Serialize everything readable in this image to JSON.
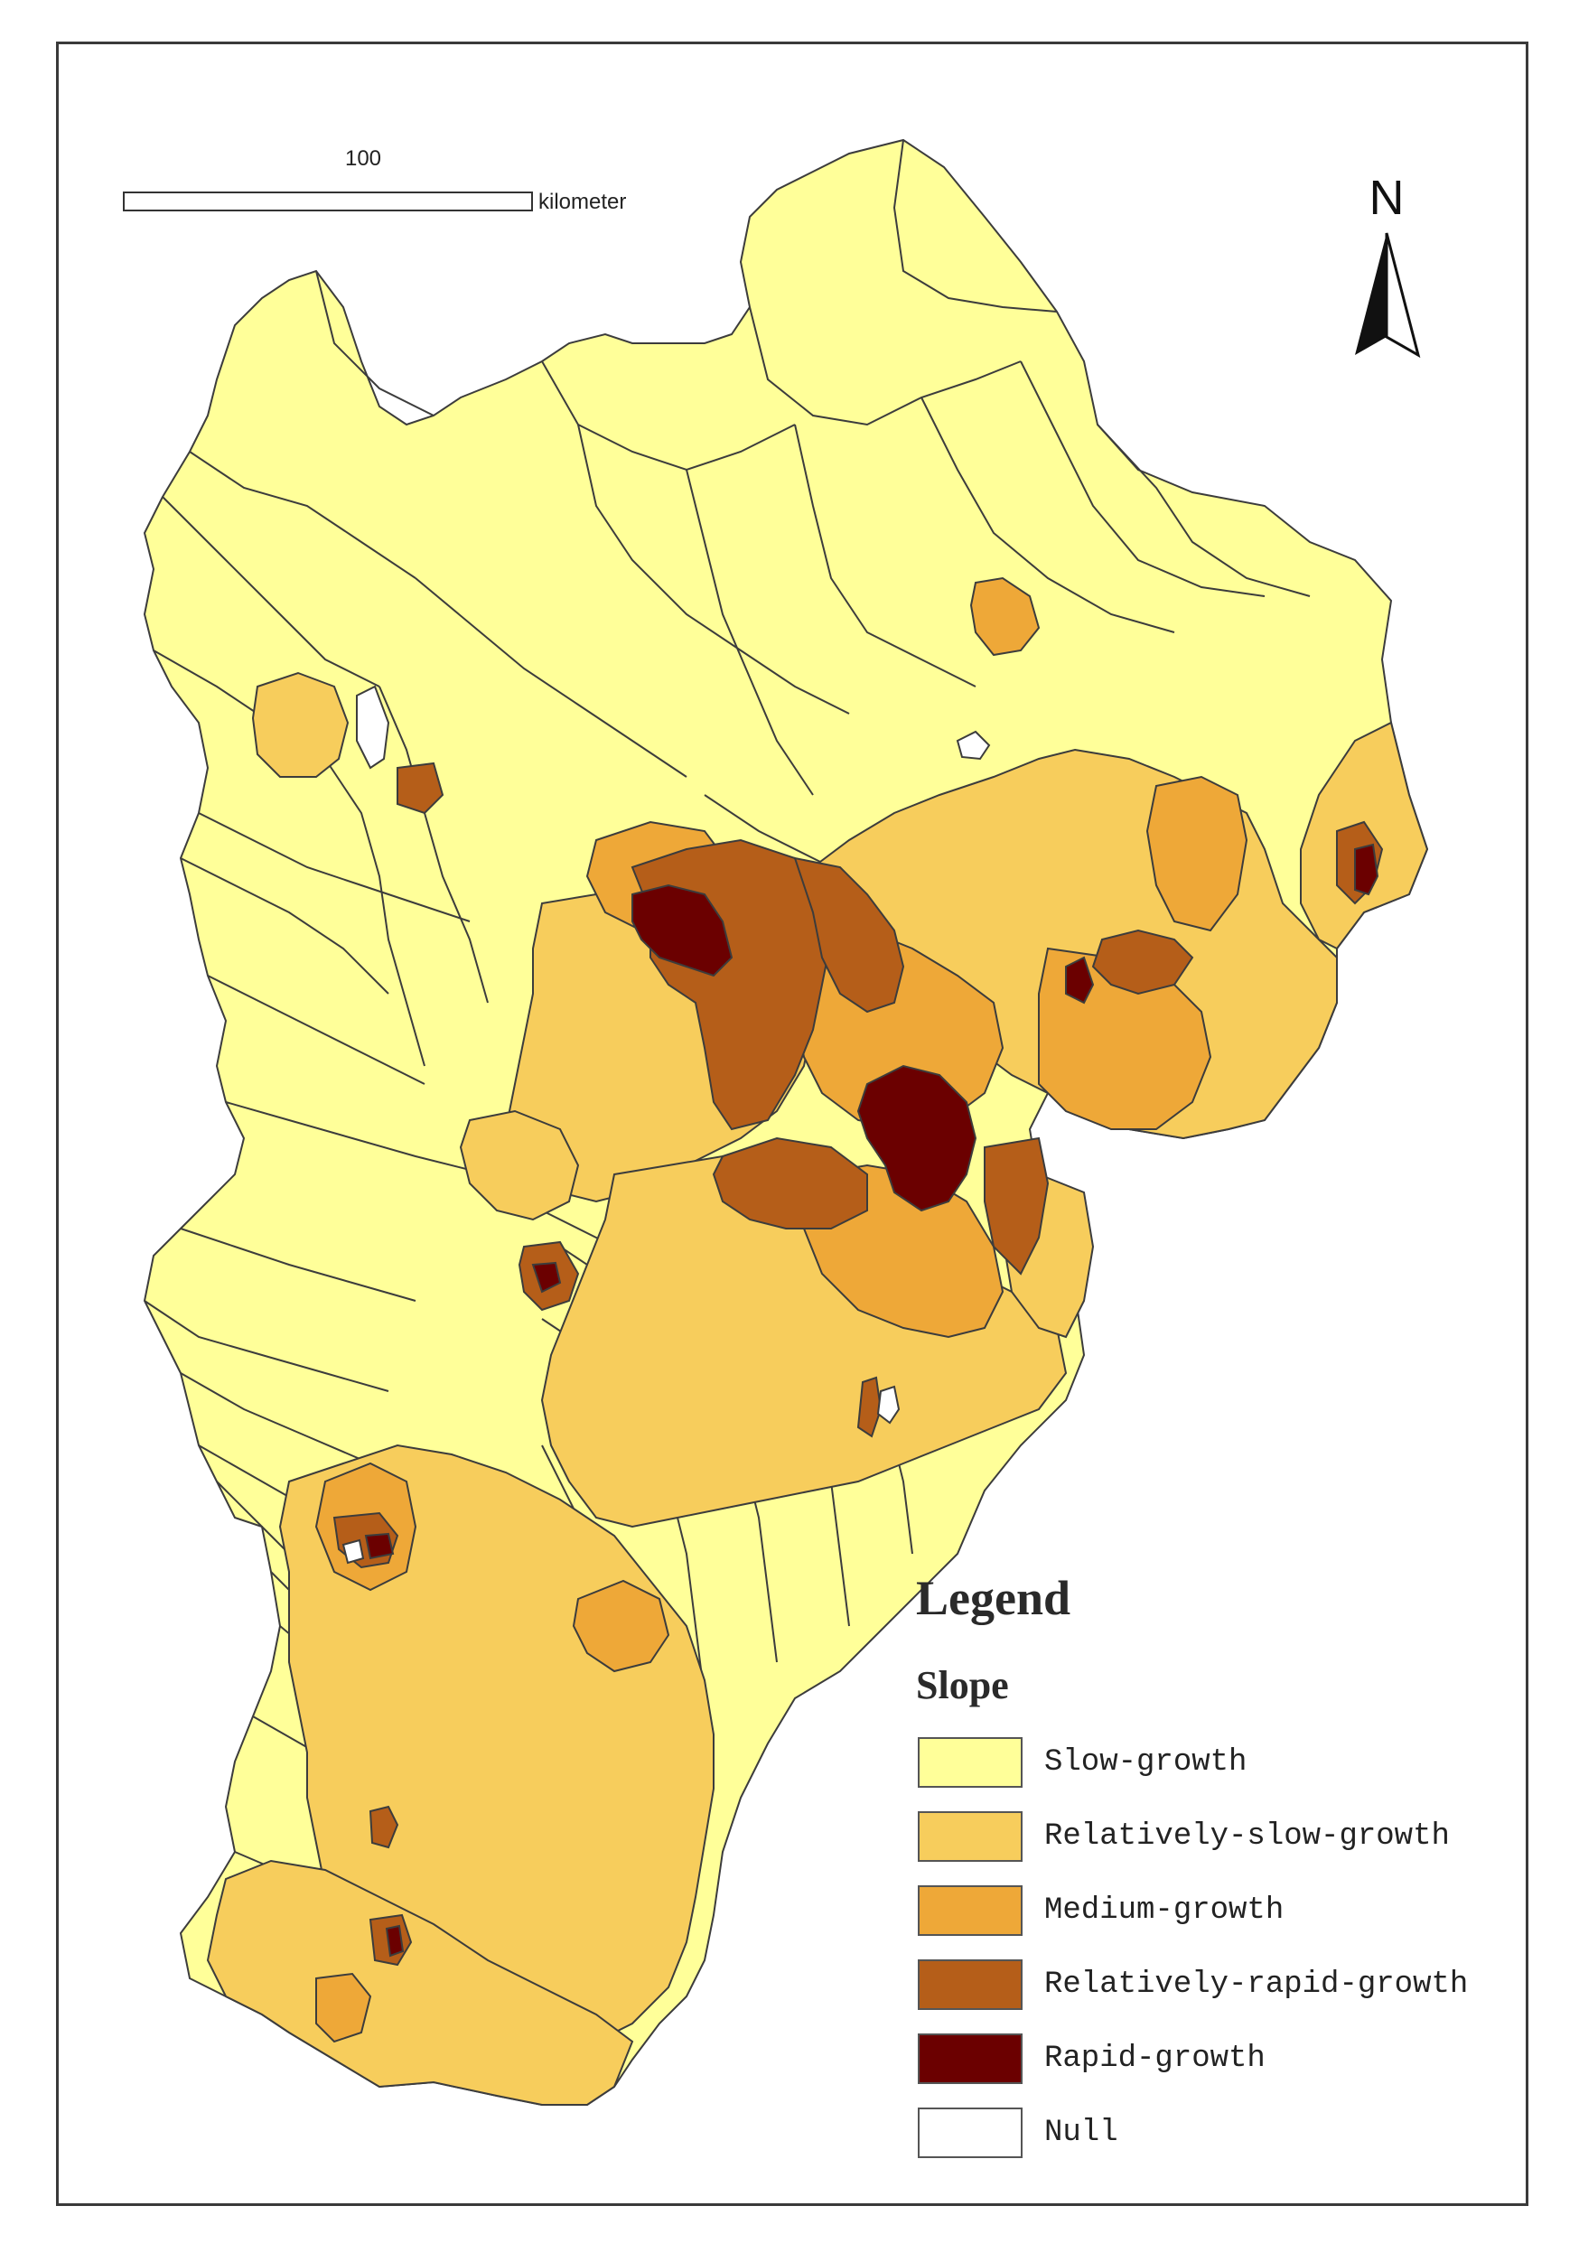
{
  "scale_bar": {
    "distance": "100",
    "unit": "kilometer"
  },
  "north_arrow": {
    "label": "N"
  },
  "legend": {
    "title": "Legend",
    "subtitle": "Slope",
    "items": [
      {
        "label": "Slow-growth",
        "color": "#ffff99"
      },
      {
        "label": "Relatively-slow-growth",
        "color": "#f7cd5c"
      },
      {
        "label": "Medium-growth",
        "color": "#eea838"
      },
      {
        "label": "Relatively-rapid-growth",
        "color": "#b55e19"
      },
      {
        "label": "Rapid-growth",
        "color": "#6b0000"
      },
      {
        "label": "Null",
        "color": "#ffffff"
      }
    ]
  },
  "colors": {
    "region_border": "#3c3c3c",
    "frame_border": "#3a3a3a"
  }
}
